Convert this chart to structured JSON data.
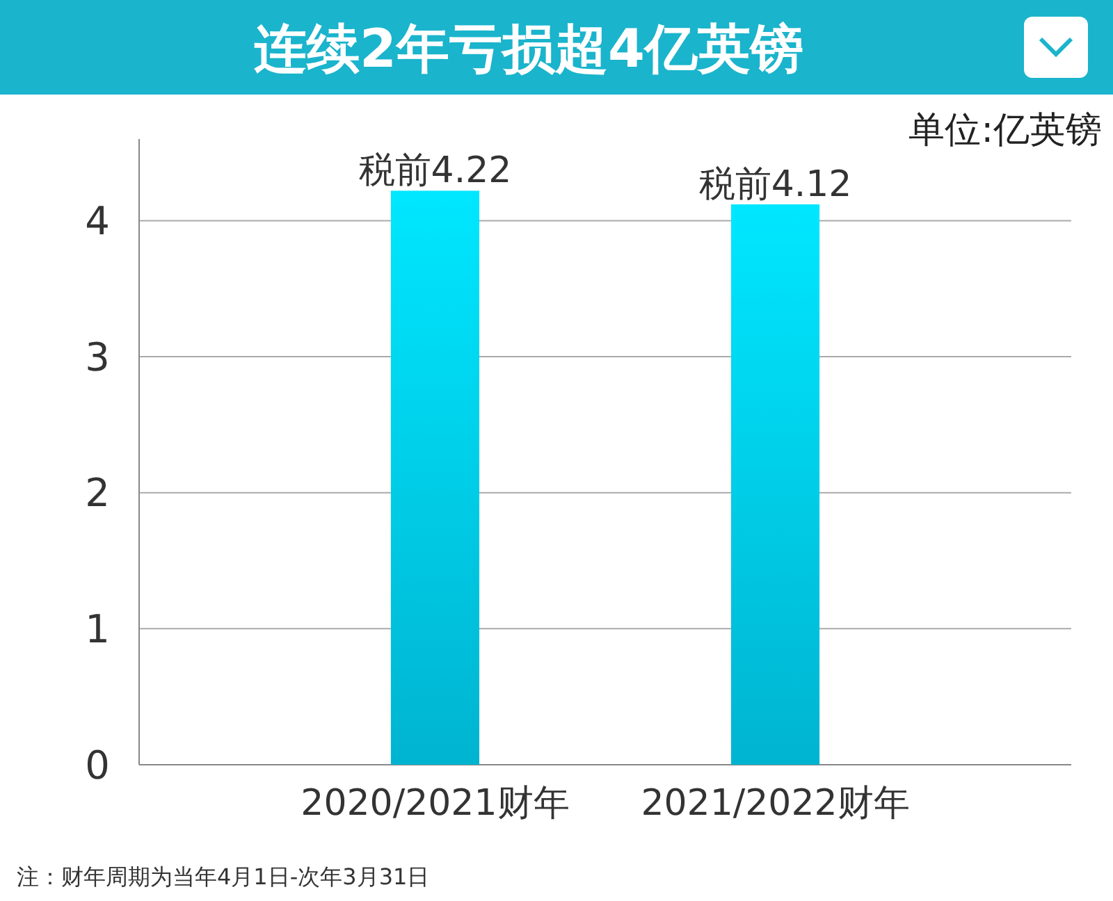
{
  "chart_data": {
    "type": "bar",
    "title": "连续2年亏损超4亿英镑",
    "categories": [
      "2020/2021财年",
      "2021/2022财年"
    ],
    "values": [
      4.22,
      4.12
    ],
    "value_labels": [
      "税前4.22",
      "税前4.12"
    ],
    "color": "#00c8e8",
    "ylim": [
      0,
      4.6
    ],
    "yticks": [
      0,
      1,
      2,
      3,
      4
    ],
    "grid": "y",
    "annotations": [
      "单位:亿英镑",
      "注：财年周期为当年4月1日-次年3月31日"
    ]
  }
}
